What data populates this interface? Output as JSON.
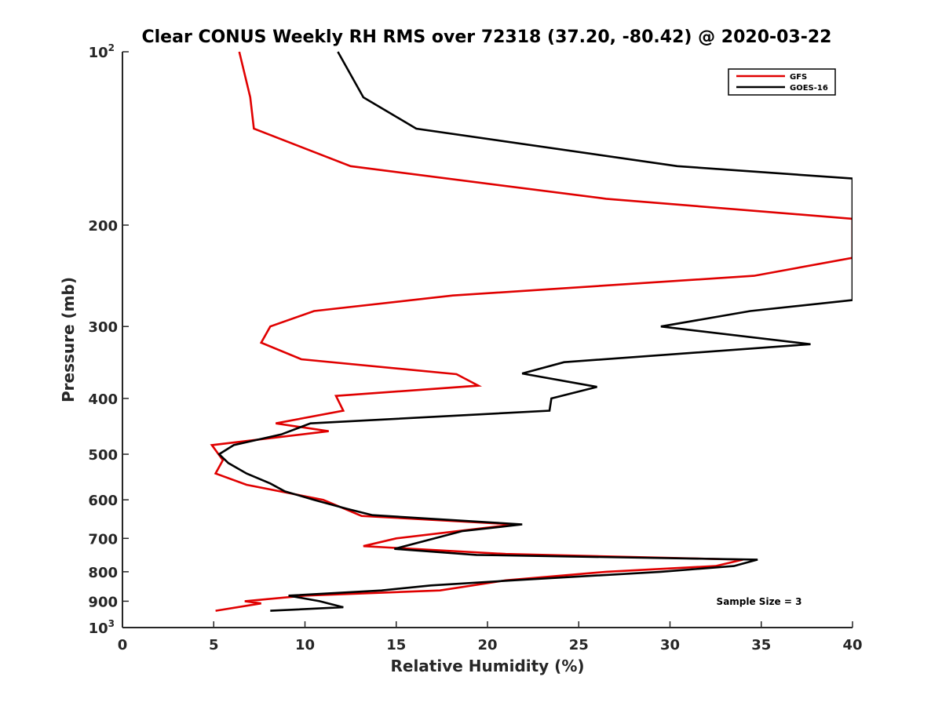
{
  "chart_data": {
    "type": "line",
    "title": "Clear CONUS Weekly RH RMS over 72318 (37.20, -80.42) @ 2020-03-22",
    "xlabel": "Relative Humidity (%)",
    "ylabel": "Pressure (mb)",
    "xlim": [
      0,
      40
    ],
    "ylim": [
      100,
      1000
    ],
    "y_scale": "log",
    "y_reversed": true,
    "grid": false,
    "legend_position": "top-right",
    "x_ticks": [
      "0",
      "5",
      "10",
      "15",
      "20",
      "25",
      "30",
      "35",
      "40"
    ],
    "y_ticks": [
      {
        "value": 100,
        "base": "10",
        "exp": "2"
      },
      {
        "value": 200,
        "base": "200",
        "exp": ""
      },
      {
        "value": 300,
        "base": "300",
        "exp": ""
      },
      {
        "value": 400,
        "base": "400",
        "exp": ""
      },
      {
        "value": 500,
        "base": "500",
        "exp": ""
      },
      {
        "value": 600,
        "base": "600",
        "exp": ""
      },
      {
        "value": 700,
        "base": "700",
        "exp": ""
      },
      {
        "value": 800,
        "base": "800",
        "exp": ""
      },
      {
        "value": 900,
        "base": "900",
        "exp": ""
      },
      {
        "value": 1000,
        "base": "10",
        "exp": "3"
      }
    ],
    "series": [
      {
        "name": "GFS",
        "color": "#e00000",
        "points": [
          [
            6.4,
            100
          ],
          [
            7.0,
            120
          ],
          [
            7.2,
            136
          ],
          [
            12.5,
            158
          ],
          [
            26.5,
            180
          ],
          [
            40.0,
            195
          ],
          [
            40.0,
            228
          ],
          [
            34.6,
            245
          ],
          [
            18.1,
            265
          ],
          [
            10.5,
            282
          ],
          [
            8.1,
            300
          ],
          [
            7.6,
            320
          ],
          [
            9.8,
            342
          ],
          [
            18.3,
            363
          ],
          [
            19.5,
            380
          ],
          [
            11.7,
            396
          ],
          [
            12.1,
            420
          ],
          [
            8.4,
            442
          ],
          [
            11.3,
            456
          ],
          [
            4.9,
            482
          ],
          [
            5.5,
            512
          ],
          [
            5.1,
            540
          ],
          [
            6.8,
            565
          ],
          [
            11.0,
            600
          ],
          [
            13.1,
            640
          ],
          [
            21.5,
            662
          ],
          [
            15.0,
            700
          ],
          [
            13.2,
            722
          ],
          [
            21.0,
            745
          ],
          [
            34.0,
            762
          ],
          [
            32.5,
            782
          ],
          [
            26.5,
            800
          ],
          [
            21.0,
            828
          ],
          [
            17.4,
            862
          ],
          [
            10.0,
            880
          ],
          [
            6.7,
            900
          ],
          [
            7.6,
            908
          ],
          [
            5.1,
            935
          ]
        ]
      },
      {
        "name": "GOES-16",
        "color": "#000000",
        "points": [
          [
            11.8,
            100
          ],
          [
            13.2,
            120
          ],
          [
            16.1,
            136
          ],
          [
            30.4,
            158
          ],
          [
            40.0,
            166
          ],
          [
            40.0,
            270
          ],
          [
            34.4,
            282
          ],
          [
            29.5,
            300
          ],
          [
            37.7,
            322
          ],
          [
            24.2,
            346
          ],
          [
            21.9,
            362
          ],
          [
            26.0,
            382
          ],
          [
            23.5,
            400
          ],
          [
            23.4,
            420
          ],
          [
            10.3,
            442
          ],
          [
            8.7,
            462
          ],
          [
            6.1,
            482
          ],
          [
            5.3,
            500
          ],
          [
            5.8,
            518
          ],
          [
            6.8,
            540
          ],
          [
            8.1,
            562
          ],
          [
            8.9,
            580
          ],
          [
            10.5,
            600
          ],
          [
            12.3,
            622
          ],
          [
            13.7,
            638
          ],
          [
            21.9,
            662
          ],
          [
            18.6,
            680
          ],
          [
            14.9,
            730
          ],
          [
            19.4,
            748
          ],
          [
            34.8,
            762
          ],
          [
            33.5,
            782
          ],
          [
            29.5,
            800
          ],
          [
            22.2,
            825
          ],
          [
            16.9,
            845
          ],
          [
            14.2,
            862
          ],
          [
            9.1,
            880
          ],
          [
            10.8,
            900
          ],
          [
            12.1,
            922
          ],
          [
            8.1,
            935
          ]
        ]
      }
    ],
    "annotations": [
      "Sample Size = 3"
    ]
  }
}
